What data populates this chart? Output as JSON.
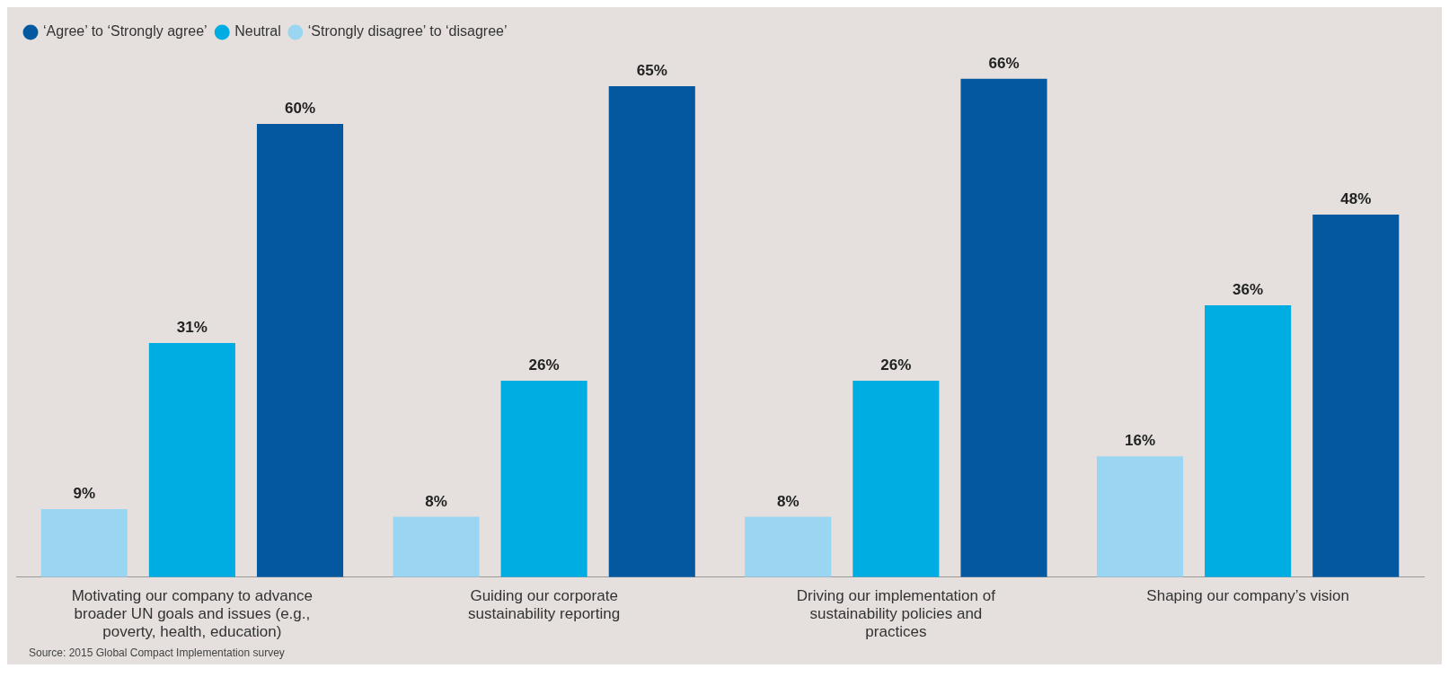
{
  "chart_data": {
    "type": "bar",
    "categories": [
      "Motivating our company to advance broader UN goals and issues (e.g., poverty, health, education)",
      "Guiding our corporate sustainability reporting",
      "Driving our implementation of sustainability policies and practices",
      "Shaping our company’s vision"
    ],
    "series": [
      {
        "name": "‘Strongly disagree’ to ‘disagree’",
        "color": "#9ad6f2",
        "values": [
          9,
          8,
          8,
          16
        ],
        "value_labels": [
          "9%",
          "8%",
          "8%",
          "16%"
        ]
      },
      {
        "name": "Neutral",
        "color": "#00ade3",
        "values": [
          31,
          26,
          26,
          36
        ],
        "value_labels": [
          "31%",
          "26%",
          "26%",
          "36%"
        ]
      },
      {
        "name": "‘Agree’ to ‘Strongly agree’",
        "color": "#0358a0",
        "values": [
          60,
          65,
          66,
          48
        ],
        "value_labels": [
          "60%",
          "65%",
          "66%",
          "48%"
        ]
      }
    ],
    "legend": "top left",
    "grid": false,
    "tick_labels": "x",
    "annotations": [
      "Source: 2015 Global Compact Implementation survey"
    ]
  }
}
